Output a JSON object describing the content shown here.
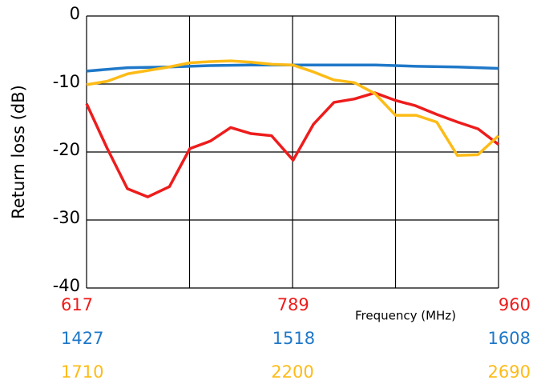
{
  "chart_data": {
    "type": "line",
    "ylabel": "Return loss (dB)",
    "xlabel": "Frequency (MHz)",
    "ylim": [
      -40,
      0
    ],
    "yticks": [
      -40,
      -30,
      -20,
      -10,
      0
    ],
    "grid": true,
    "series": [
      {
        "color": "#ee1c1c",
        "xlim": [
          617,
          960
        ],
        "xticks": [
          617,
          789,
          960
        ],
        "x": [
          617,
          634,
          651,
          668,
          686,
          703,
          720,
          737,
          754,
          771,
          789,
          806,
          823,
          840,
          857,
          874,
          891,
          909,
          926,
          943,
          960
        ],
        "values": [
          -12.9,
          -19.4,
          -25.4,
          -26.6,
          -25.1,
          -19.5,
          -18.4,
          -16.4,
          -17.3,
          -17.6,
          -21.2,
          -15.9,
          -12.7,
          -12.2,
          -11.3,
          -12.4,
          -13.2,
          -14.5,
          -15.6,
          -16.6,
          -18.9
        ]
      },
      {
        "color": "#1f78c8",
        "xlim": [
          1427,
          1608
        ],
        "xticks": [
          1427,
          1518,
          1608
        ],
        "x": [
          1427,
          1445,
          1463,
          1481,
          1499,
          1518,
          1536,
          1554,
          1572,
          1590,
          1608
        ],
        "values": [
          -8.1,
          -7.6,
          -7.5,
          -7.3,
          -7.2,
          -7.2,
          -7.2,
          -7.2,
          -7.4,
          -7.5,
          -7.7
        ]
      },
      {
        "color": "#fdbb16",
        "xlim": [
          1710,
          2690
        ],
        "xticks": [
          1710,
          2200,
          2690
        ],
        "x": [
          1710,
          1759,
          1808,
          1857,
          1906,
          1955,
          2004,
          2053,
          2102,
          2151,
          2200,
          2249,
          2298,
          2347,
          2396,
          2445,
          2494,
          2543,
          2592,
          2641,
          2690
        ],
        "values": [
          -10.1,
          -9.6,
          -8.5,
          -8.0,
          -7.5,
          -6.9,
          -6.7,
          -6.6,
          -6.8,
          -7.1,
          -7.2,
          -8.2,
          -9.4,
          -9.8,
          -11.4,
          -14.6,
          -14.6,
          -15.6,
          -20.5,
          -20.4,
          -17.6
        ]
      }
    ]
  }
}
